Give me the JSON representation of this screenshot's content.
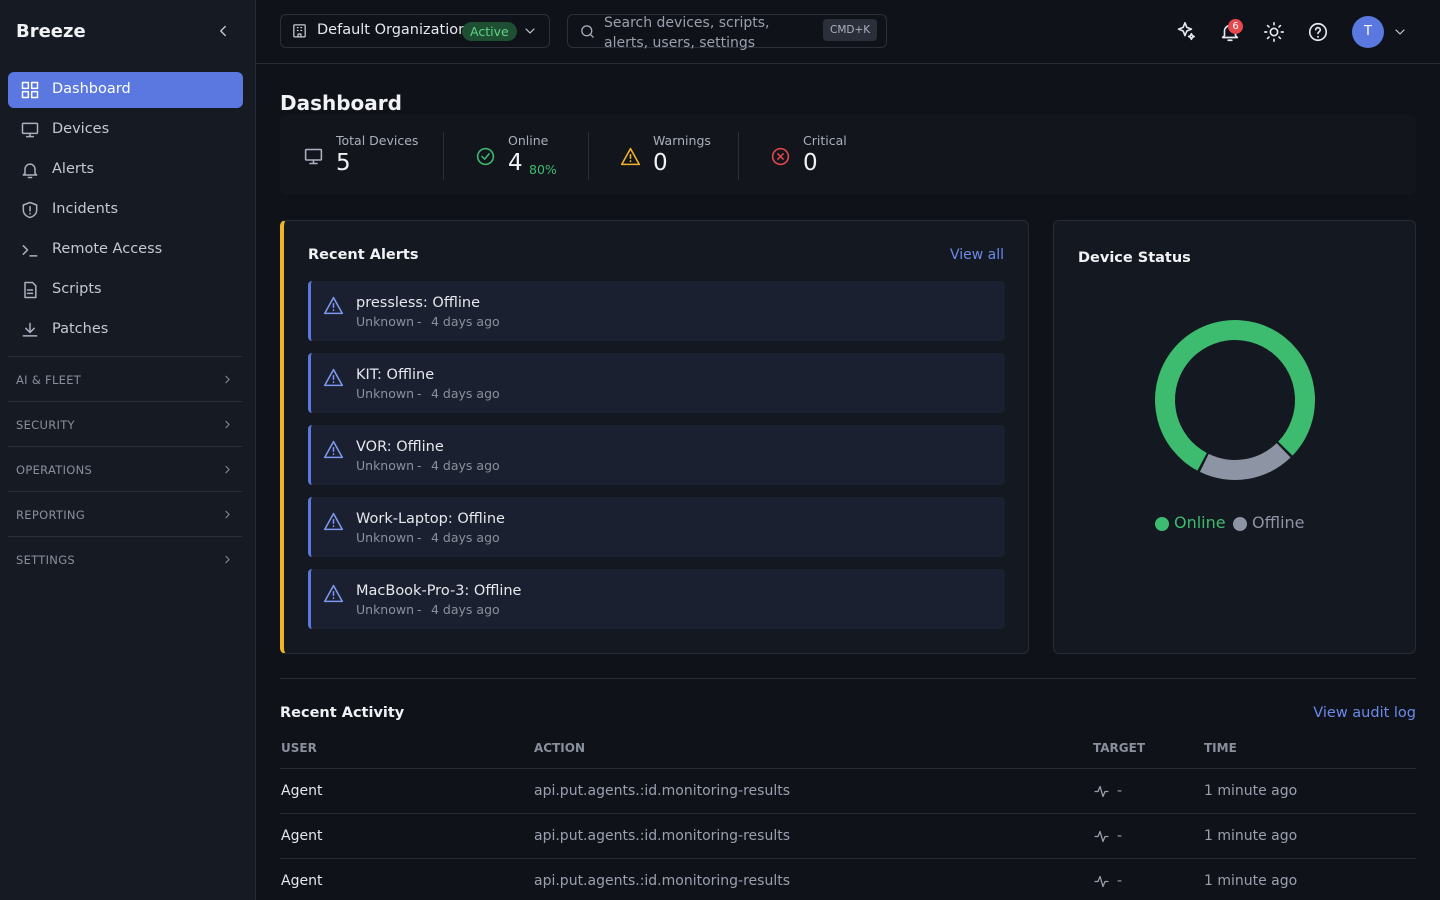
{
  "sidebar": {
    "brand": "Breeze",
    "nav": [
      "Dashboard",
      "Devices",
      "Alerts",
      "Incidents",
      "Remote Access",
      "Scripts",
      "Patches"
    ],
    "sections": [
      "AI & FLEET",
      "SECURITY",
      "OPERATIONS",
      "REPORTING",
      "SETTINGS"
    ]
  },
  "header": {
    "organization": "Default Organization",
    "status": "Active",
    "search": "Search devices, scripts, alerts, users, settings",
    "shortcut": "CMD+K",
    "notifications": 6,
    "avatar": "T"
  },
  "page_title": "Dashboard",
  "stats": [
    {
      "label": "Total Devices",
      "value": 5
    },
    {
      "label": "Online",
      "value": 4,
      "percent": "80%"
    },
    {
      "label": "Warnings",
      "value": 0
    },
    {
      "label": "Critical",
      "value": 0
    }
  ],
  "recent_alerts": {
    "title": "Recent Alerts",
    "link": "View all",
    "items": [
      {
        "title": "pressless: Offline",
        "source": "Unknown",
        "separator": "-",
        "time": "4 days ago"
      },
      {
        "title": "KIT: Offline",
        "source": "Unknown",
        "separator": "-",
        "time": "4 days ago"
      },
      {
        "title": "VOR: Offline",
        "source": "Unknown",
        "separator": "-",
        "time": "4 days ago"
      },
      {
        "title": "Work-Laptop: Offline",
        "source": "Unknown",
        "separator": "-",
        "time": "4 days ago"
      },
      {
        "title": "MacBook-Pro-3: Offline",
        "source": "Unknown",
        "separator": "-",
        "time": "4 days ago"
      }
    ]
  },
  "device_status": {
    "title": "Device Status",
    "series": [
      {
        "name": "Online",
        "value": 4,
        "color": "#3dbb6e"
      },
      {
        "name": "Offline",
        "value": 1,
        "color": "#8d94a3"
      }
    ]
  },
  "recent_activity": {
    "title": "Recent Activity",
    "link": "View audit log",
    "columns": [
      "USER",
      "ACTION",
      "TARGET",
      "TIME"
    ],
    "rows": [
      [
        "Agent",
        "api.put.agents.:id.monitoring-results",
        "-",
        "1 minute ago"
      ],
      [
        "Agent",
        "api.put.agents.:id.monitoring-results",
        "-",
        "1 minute ago"
      ],
      [
        "Agent",
        "api.put.agents.:id.monitoring-results",
        "-",
        "1 minute ago"
      ]
    ]
  }
}
